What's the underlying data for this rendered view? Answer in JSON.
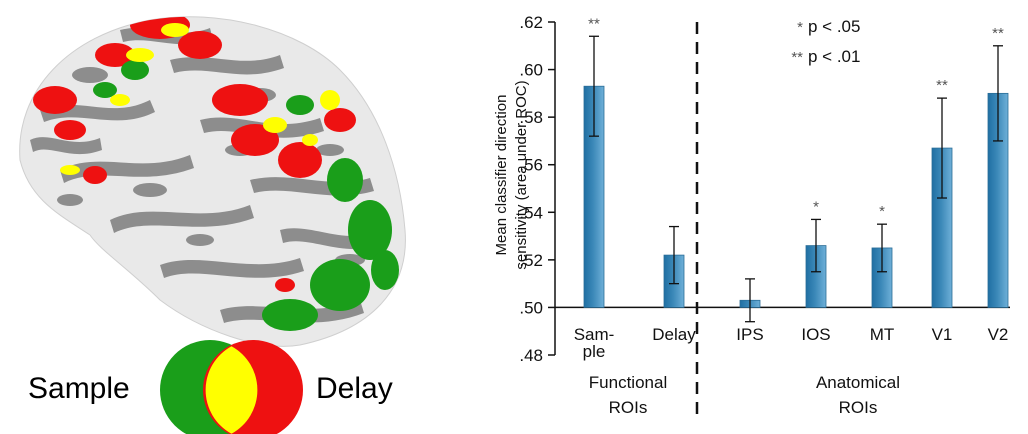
{
  "venn": {
    "left_label": "Sample",
    "right_label": "Delay",
    "colors": {
      "sample": "#1a9e1a",
      "delay": "#ee1111",
      "overlap": "#ffff00"
    }
  },
  "chart_data": {
    "type": "bar",
    "ylabel_line1": "Mean classifier direction",
    "ylabel_line2": "sensitivity (area under ROC)",
    "ylim": [
      0.48,
      0.62
    ],
    "baseline": 0.5,
    "yticks": [
      0.48,
      0.5,
      0.52,
      0.54,
      0.56,
      0.58,
      0.6,
      0.62
    ],
    "ytick_labels": [
      ".48",
      ".50",
      ".52",
      ".54",
      ".56",
      ".58",
      ".60",
      ".62"
    ],
    "categories": [
      {
        "label": [
          "Sam-",
          "ple"
        ],
        "value": 0.593,
        "err": 0.021,
        "sig": "**"
      },
      {
        "label": [
          "Delay"
        ],
        "value": 0.522,
        "err": 0.012,
        "sig": ""
      },
      {
        "label": [
          "IPS"
        ],
        "value": 0.503,
        "err": 0.009,
        "sig": ""
      },
      {
        "label": [
          "IOS"
        ],
        "value": 0.526,
        "err": 0.011,
        "sig": "*"
      },
      {
        "label": [
          "MT"
        ],
        "value": 0.525,
        "err": 0.01,
        "sig": "*"
      },
      {
        "label": [
          "V1"
        ],
        "value": 0.567,
        "err": 0.021,
        "sig": "**"
      },
      {
        "label": [
          "V2"
        ],
        "value": 0.59,
        "err": 0.02,
        "sig": "**"
      }
    ],
    "groups": [
      {
        "lines": [
          "Functional",
          "ROIs"
        ]
      },
      {
        "lines": [
          "Anatomical",
          "ROIs"
        ]
      }
    ],
    "legend": [
      {
        "stars": "*",
        "text": "p < .05"
      },
      {
        "stars": "**",
        "text": "p < .01"
      }
    ],
    "bar_color": "#3b88b8",
    "grid": false
  }
}
